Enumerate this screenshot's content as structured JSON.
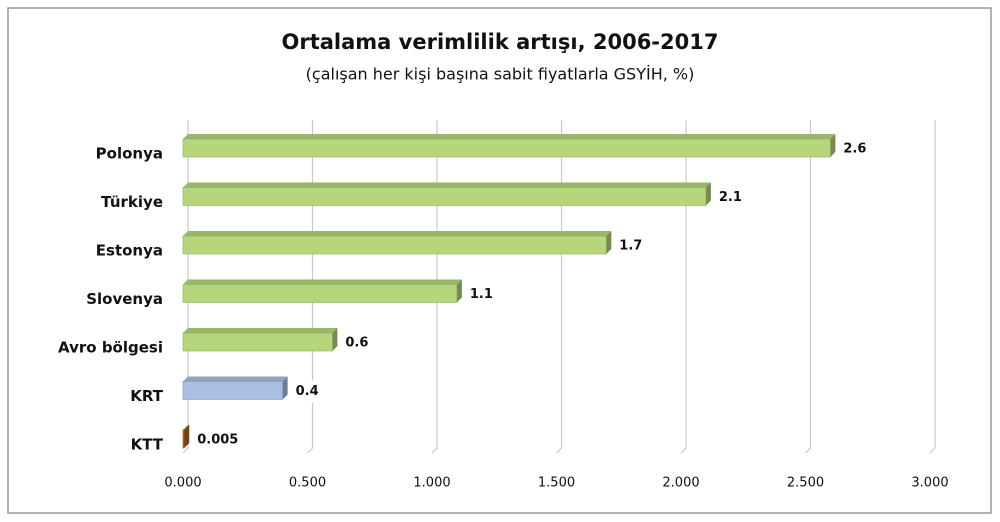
{
  "chart_data": {
    "type": "bar",
    "orientation": "horizontal",
    "title": "Ortalama verimlilik artışı, 2006-2017",
    "subtitle": "(çalışan her kişi başına sabit fiyatlarla GSYİH, %)",
    "categories": [
      "Polonya",
      "Türkiye",
      "Estonya",
      "Slovenya",
      "Avro bölgesi",
      "KRT",
      "KTT"
    ],
    "values": [
      2.6,
      2.1,
      1.7,
      1.1,
      0.6,
      0.4,
      0.005
    ],
    "colors": [
      "#b5d67a",
      "#b5d67a",
      "#b5d67a",
      "#b5d67a",
      "#b5d67a",
      "#a9c0e3",
      "#b5651d"
    ],
    "xlim": [
      0,
      3
    ],
    "xticks": [
      {
        "value": 0,
        "label": "0.000"
      },
      {
        "value": 0.5,
        "label": "0.500"
      },
      {
        "value": 1,
        "label": "1.000"
      },
      {
        "value": 1.5,
        "label": "1.500"
      },
      {
        "value": 2,
        "label": "2.000"
      },
      {
        "value": 2.5,
        "label": "2.500"
      },
      {
        "value": 3,
        "label": "3.000"
      }
    ],
    "grid": true
  }
}
